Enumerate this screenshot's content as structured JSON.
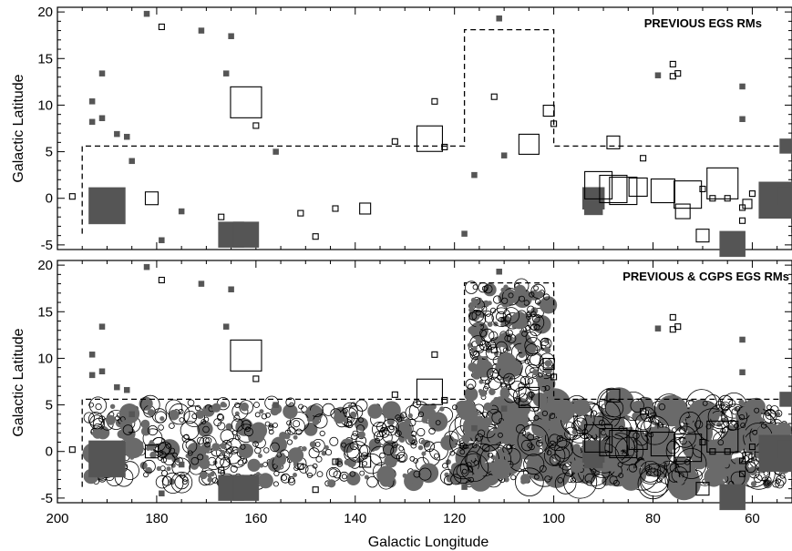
{
  "chart_data": [
    {
      "type": "scatter",
      "title": "PREVIOUS EGS RMs",
      "xlabel": "",
      "ylabel": "Galactic Latitude",
      "xlim": [
        200,
        52
      ],
      "ylim": [
        -5.5,
        20.5
      ],
      "xticks": [],
      "yticks": [
        "-5",
        "0",
        "5",
        "10",
        "15",
        "20"
      ],
      "survey_outline": [
        [
          195,
          -3.8
        ],
        [
          195,
          5.6
        ],
        [
          118,
          5.6
        ],
        [
          118,
          18.1
        ],
        [
          100,
          18.1
        ],
        [
          100,
          5.6
        ],
        [
          52,
          5.6
        ],
        [
          52,
          -3.8
        ]
      ],
      "rm_positive": [
        [
          182,
          19.8
        ],
        [
          171,
          18.0
        ],
        [
          165,
          17.4
        ],
        [
          111,
          19.3
        ],
        [
          191,
          13.4
        ],
        [
          166,
          13.4
        ],
        [
          193,
          10.4
        ],
        [
          191,
          8.6
        ],
        [
          193,
          8.2
        ],
        [
          188,
          6.9
        ],
        [
          186,
          6.6
        ],
        [
          156,
          5.0
        ],
        [
          185,
          4.0
        ],
        [
          116,
          2.5
        ],
        [
          110,
          4.6
        ],
        [
          79,
          13.2
        ],
        [
          62,
          12.0
        ],
        [
          62,
          8.5
        ],
        [
          175,
          -1.4
        ],
        [
          179,
          -4.5
        ],
        [
          118,
          -3.8
        ]
      ],
      "rm_positive_large": [
        [
          190,
          -0.8,
          20
        ],
        [
          165,
          -3.9,
          14
        ],
        [
          162,
          -3.9,
          14
        ],
        [
          92,
          0.0,
          12
        ],
        [
          92,
          -0.8,
          10
        ],
        [
          64,
          -4.9,
          14
        ],
        [
          55,
          -0.2,
          20
        ],
        [
          53,
          5.6,
          8
        ],
        [
          53,
          0.2,
          10
        ]
      ],
      "rm_negative": [
        [
          197,
          0.2,
          6
        ],
        [
          179,
          18.4,
          6
        ],
        [
          160,
          7.8,
          6
        ],
        [
          124,
          10.4,
          6
        ],
        [
          112,
          10.9,
          6
        ],
        [
          132,
          6.1,
          6
        ],
        [
          167,
          -2.0,
          6
        ],
        [
          151,
          -1.6,
          6
        ],
        [
          144,
          -1.1,
          6
        ],
        [
          148,
          -4.1,
          6
        ],
        [
          76,
          14.4,
          6
        ],
        [
          75,
          13.4,
          6
        ],
        [
          76,
          13.1,
          6
        ],
        [
          82,
          4.3,
          6
        ],
        [
          70,
          1.0,
          6
        ],
        [
          65,
          0.0,
          6
        ],
        [
          68,
          0.0,
          6
        ],
        [
          60,
          0.5,
          6
        ],
        [
          62,
          -2.4,
          6
        ],
        [
          62,
          -1.0,
          6
        ],
        [
          122,
          5.5,
          6
        ],
        [
          100,
          8.0,
          6
        ]
      ],
      "rm_negative_large": [
        [
          181,
          0.0,
          14
        ],
        [
          162,
          10.3,
          34
        ],
        [
          125,
          6.4,
          28
        ],
        [
          101,
          9.4,
          12
        ],
        [
          105,
          5.8,
          22
        ],
        [
          88,
          6.0,
          14
        ],
        [
          138,
          -1.1,
          12
        ],
        [
          86,
          0.8,
          30
        ],
        [
          91,
          1.4,
          30
        ],
        [
          88,
          1.0,
          30
        ],
        [
          83,
          1.2,
          20
        ],
        [
          78,
          0.8,
          26
        ],
        [
          74,
          -1.4,
          16
        ],
        [
          70,
          -4.0,
          14
        ],
        [
          66,
          1.6,
          34
        ],
        [
          61,
          -0.6,
          10
        ],
        [
          73,
          0.4,
          30
        ]
      ]
    },
    {
      "type": "scatter",
      "title": "PREVIOUS & CGPS EGS RMs",
      "xlabel": "Galactic Longitude",
      "ylabel": "Galactic Latitude",
      "xlim": [
        200,
        52
      ],
      "ylim": [
        -5.5,
        20.5
      ],
      "xticks": [
        "200",
        "180",
        "160",
        "140",
        "120",
        "100",
        "80",
        "60"
      ],
      "yticks": [
        "-5",
        "0",
        "5",
        "10",
        "15",
        "20"
      ]
    }
  ]
}
